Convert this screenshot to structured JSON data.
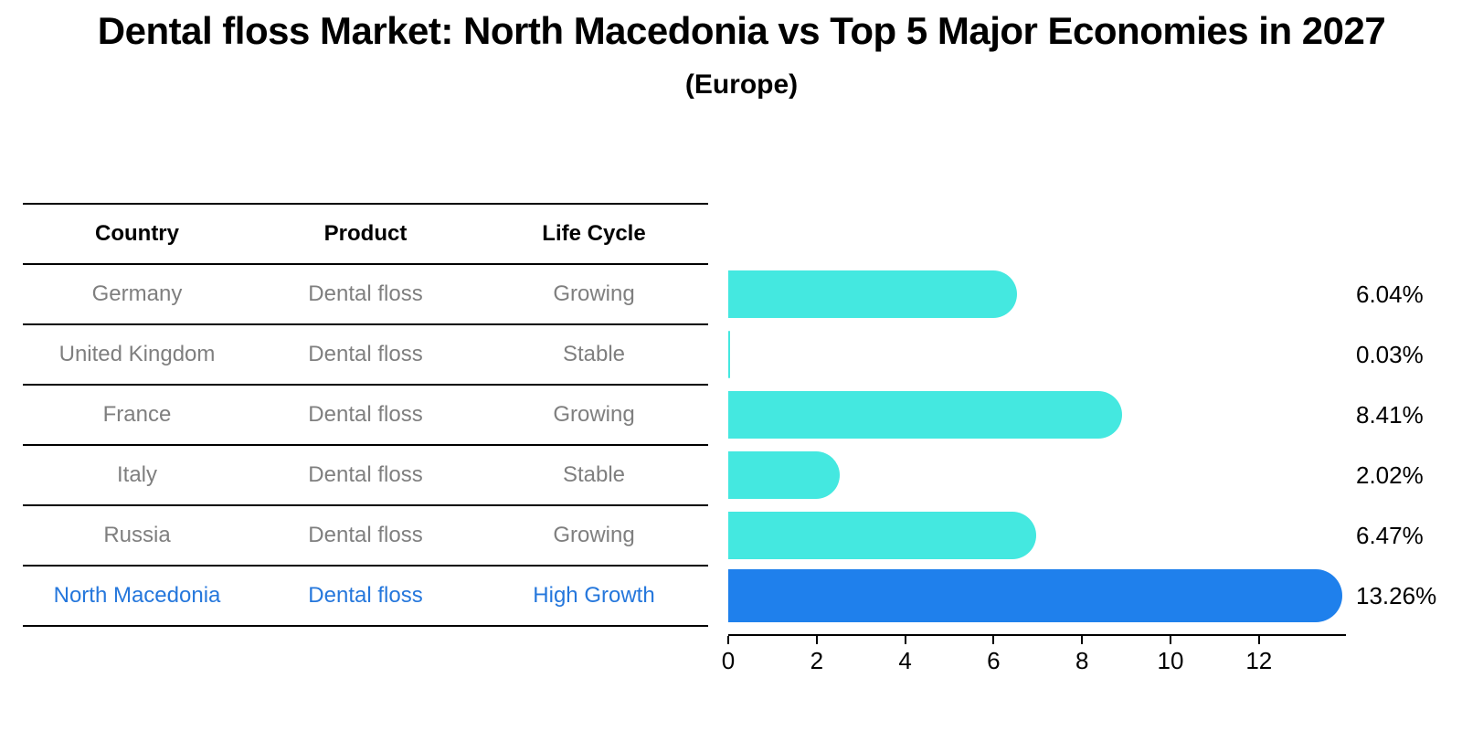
{
  "title": "Dental floss Market: North Macedonia vs Top 5 Major Economies in 2027",
  "subtitle": "(Europe)",
  "table": {
    "headers": [
      "Country",
      "Product",
      "Life Cycle"
    ],
    "rows": [
      {
        "country": "Germany",
        "product": "Dental floss",
        "life_cycle": "Growing",
        "highlight": false
      },
      {
        "country": "United Kingdom",
        "product": "Dental floss",
        "life_cycle": "Stable",
        "highlight": false
      },
      {
        "country": "France",
        "product": "Dental floss",
        "life_cycle": "Growing",
        "highlight": false
      },
      {
        "country": "Italy",
        "product": "Dental floss",
        "life_cycle": "Stable",
        "highlight": false
      },
      {
        "country": "Russia",
        "product": "Dental floss",
        "life_cycle": "Growing",
        "highlight": false
      },
      {
        "country": "North Macedonia",
        "product": "Dental floss",
        "life_cycle": "High Growth",
        "highlight": true
      }
    ]
  },
  "chart_data": {
    "type": "bar",
    "orientation": "horizontal",
    "title": "Dental floss Market: North Macedonia vs Top 5 Major Economies in 2027 (Europe)",
    "categories": [
      "Germany",
      "United Kingdom",
      "France",
      "Italy",
      "Russia",
      "North Macedonia"
    ],
    "values": [
      6.04,
      0.03,
      8.41,
      2.02,
      6.47,
      13.26
    ],
    "value_labels": [
      "6.04%",
      "0.03%",
      "8.41%",
      "2.02%",
      "6.47%",
      "13.26%"
    ],
    "x_ticks": [
      0,
      2,
      4,
      6,
      8,
      10,
      12
    ],
    "xlim": [
      0,
      13.95
    ],
    "grid": false,
    "legend": "none",
    "bar_color": "#44E8E0",
    "highlight_color": "#1F80EC",
    "highlight_index": 5
  },
  "colors": {
    "body_text": "#7f7f7f",
    "highlight_text": "#2577dc",
    "axis": "#000000"
  }
}
